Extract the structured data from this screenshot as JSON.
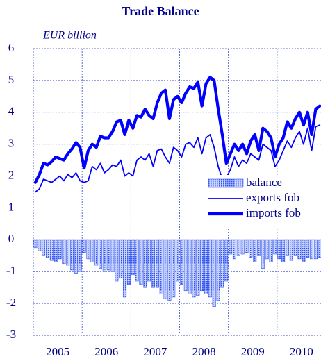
{
  "chart_data": {
    "type": "bar-line",
    "title": "Trade Balance",
    "y_label": "EUR billion",
    "x": [
      2005.042,
      2005.125,
      2005.208,
      2005.292,
      2005.375,
      2005.458,
      2005.542,
      2005.625,
      2005.708,
      2005.792,
      2005.875,
      2005.958,
      2006.042,
      2006.125,
      2006.208,
      2006.292,
      2006.375,
      2006.458,
      2006.542,
      2006.625,
      2006.708,
      2006.792,
      2006.875,
      2006.958,
      2007.042,
      2007.125,
      2007.208,
      2007.292,
      2007.375,
      2007.458,
      2007.542,
      2007.625,
      2007.708,
      2007.792,
      2007.875,
      2007.958,
      2008.042,
      2008.125,
      2008.208,
      2008.292,
      2008.375,
      2008.458,
      2008.542,
      2008.625,
      2008.708,
      2008.792,
      2008.875,
      2008.958,
      2009.042,
      2009.125,
      2009.208,
      2009.292,
      2009.375,
      2009.458,
      2009.542,
      2009.625,
      2009.708,
      2009.792,
      2009.875,
      2009.958,
      2010.042,
      2010.125,
      2010.208,
      2010.292,
      2010.375,
      2010.458,
      2010.542,
      2010.625,
      2010.708,
      2010.792,
      2010.875
    ],
    "series": [
      {
        "name": "balance",
        "type": "bar",
        "color": "#3355ee",
        "values": [
          -0.25,
          -0.35,
          -0.5,
          -0.55,
          -0.65,
          -0.7,
          -0.6,
          -0.75,
          -0.8,
          -0.95,
          -1.05,
          -1.0,
          -0.4,
          -0.6,
          -0.7,
          -0.8,
          -0.9,
          -1.0,
          -0.95,
          -1.0,
          -1.3,
          -1.2,
          -1.8,
          -1.4,
          -1.1,
          -1.3,
          -1.4,
          -1.5,
          -1.3,
          -1.5,
          -1.5,
          -1.7,
          -1.85,
          -1.9,
          -1.8,
          -1.3,
          -1.4,
          -1.6,
          -1.7,
          -1.8,
          -1.75,
          -1.6,
          -1.7,
          -1.8,
          -2.1,
          -1.9,
          -1.5,
          -1.3,
          -0.45,
          -0.6,
          -0.5,
          -0.45,
          -0.4,
          -0.55,
          -0.7,
          -0.5,
          -0.9,
          -0.6,
          -0.7,
          -0.45,
          -0.6,
          -0.7,
          -0.5,
          -0.65,
          -0.5,
          -0.6,
          -0.7,
          -0.55,
          -0.6,
          -0.6,
          -0.55
        ]
      },
      {
        "name": "exports fob",
        "type": "line",
        "color": "#0000ff",
        "values": [
          1.5,
          1.6,
          1.9,
          1.85,
          1.8,
          1.9,
          2.0,
          1.85,
          2.05,
          1.95,
          2.1,
          1.85,
          1.8,
          1.85,
          2.3,
          2.2,
          2.4,
          2.1,
          2.2,
          2.35,
          2.3,
          2.5,
          2.0,
          2.1,
          2.0,
          2.5,
          2.6,
          2.5,
          2.7,
          2.3,
          2.8,
          2.85,
          2.6,
          2.4,
          2.9,
          2.8,
          2.6,
          3.0,
          3.05,
          2.9,
          3.2,
          2.7,
          3.2,
          3.3,
          2.9,
          2.3,
          1.9,
          1.95,
          2.2,
          2.6,
          2.3,
          2.5,
          2.4,
          2.7,
          2.6,
          2.5,
          3.0,
          2.9,
          2.8,
          2.3,
          2.5,
          2.8,
          3.1,
          2.9,
          3.2,
          3.4,
          3.0,
          3.5,
          2.8,
          3.55,
          3.6
        ]
      },
      {
        "name": "imports fob",
        "type": "line",
        "color": "#0000ff",
        "values": [
          1.8,
          2.05,
          2.4,
          2.35,
          2.45,
          2.6,
          2.55,
          2.5,
          2.7,
          2.85,
          3.05,
          2.9,
          2.25,
          2.8,
          3.0,
          2.9,
          3.25,
          3.2,
          3.2,
          3.4,
          3.7,
          3.75,
          3.3,
          3.75,
          3.5,
          3.9,
          3.85,
          4.1,
          3.9,
          3.8,
          4.3,
          4.6,
          4.7,
          3.8,
          4.4,
          4.5,
          4.3,
          4.6,
          4.8,
          4.75,
          4.95,
          4.2,
          4.9,
          5.1,
          5.0,
          4.1,
          3.3,
          2.4,
          2.7,
          3.0,
          2.8,
          3.0,
          2.7,
          3.1,
          3.3,
          2.8,
          3.5,
          3.4,
          3.2,
          2.6,
          3.0,
          3.2,
          3.7,
          3.5,
          3.8,
          4.0,
          3.6,
          4.0,
          3.3,
          4.1,
          4.2
        ]
      }
    ],
    "xlim": [
      2005,
      2010.9
    ],
    "xticks": [
      {
        "value": 2005.5,
        "label": "2005"
      },
      {
        "value": 2006.5,
        "label": "2006"
      },
      {
        "value": 2007.5,
        "label": "2007"
      },
      {
        "value": 2008.5,
        "label": "2008"
      },
      {
        "value": 2009.5,
        "label": "2009"
      },
      {
        "value": 2010.5,
        "label": "2010"
      }
    ],
    "xgrid": [
      2006,
      2007,
      2008,
      2009,
      2010
    ],
    "ylim": [
      -3,
      6
    ],
    "yticks": [
      -3,
      -2,
      -1,
      0,
      1,
      2,
      3,
      4,
      5,
      6
    ],
    "grid": true,
    "legend": "center right"
  }
}
